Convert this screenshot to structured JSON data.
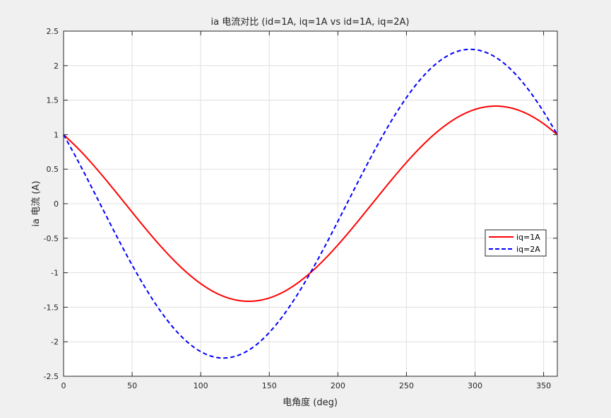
{
  "chart_data": {
    "type": "line",
    "title": "ia 电流对比 (id=1A, iq=1A  vs  id=1A, iq=2A)",
    "xlabel": "电角度 (deg)",
    "ylabel": "ia 电流 (A)",
    "xlim": [
      0,
      360
    ],
    "ylim": [
      -2.5,
      2.5
    ],
    "xticks": [
      0,
      50,
      100,
      150,
      200,
      250,
      300,
      350
    ],
    "xtick_labels": [
      "0",
      "50",
      "100",
      "150",
      "200",
      "250",
      "300",
      "350"
    ],
    "yticks": [
      -2.5,
      -2,
      -1.5,
      -1,
      -0.5,
      0,
      0.5,
      1,
      1.5,
      2,
      2.5
    ],
    "ytick_labels": [
      "-2.5",
      "-2",
      "-1.5",
      "-1",
      "-0.5",
      "0",
      "0.5",
      "1",
      "1.5",
      "2",
      "2.5"
    ],
    "grid": true,
    "legend_position": "right",
    "x": [
      0,
      10,
      20,
      30,
      40,
      50,
      60,
      70,
      80,
      90,
      100,
      110,
      120,
      130,
      140,
      150,
      160,
      170,
      180,
      190,
      200,
      210,
      220,
      230,
      240,
      250,
      260,
      270,
      280,
      290,
      300,
      310,
      320,
      330,
      340,
      350,
      360
    ],
    "series": [
      {
        "name": "iq=1A",
        "color": "#ff0000",
        "line_style": "solid",
        "values": [
          1,
          0.811,
          0.598,
          0.366,
          0.123,
          -0.123,
          -0.366,
          -0.598,
          -0.811,
          -1,
          -1.158,
          -1.282,
          -1.366,
          -1.409,
          -1.409,
          -1.366,
          -1.282,
          -1.158,
          -1,
          -0.811,
          -0.598,
          -0.366,
          -0.123,
          0.123,
          0.366,
          0.598,
          0.811,
          1,
          1.158,
          1.282,
          1.366,
          1.409,
          1.409,
          1.366,
          1.282,
          1.158,
          1
        ]
      },
      {
        "name": "iq=2A",
        "color": "#0000ff",
        "line_style": "dashed",
        "values": [
          1,
          0.638,
          0.256,
          -0.134,
          -0.52,
          -0.889,
          -1.232,
          -1.537,
          -1.796,
          -2,
          -2.143,
          -2.222,
          -2.232,
          -2.175,
          -2.052,
          -1.866,
          -1.624,
          -1.332,
          -1,
          -0.638,
          -0.256,
          0.134,
          0.52,
          0.889,
          1.232,
          1.537,
          1.796,
          2,
          2.143,
          2.222,
          2.232,
          2.175,
          2.052,
          1.866,
          1.624,
          1.332,
          1
        ]
      }
    ]
  }
}
